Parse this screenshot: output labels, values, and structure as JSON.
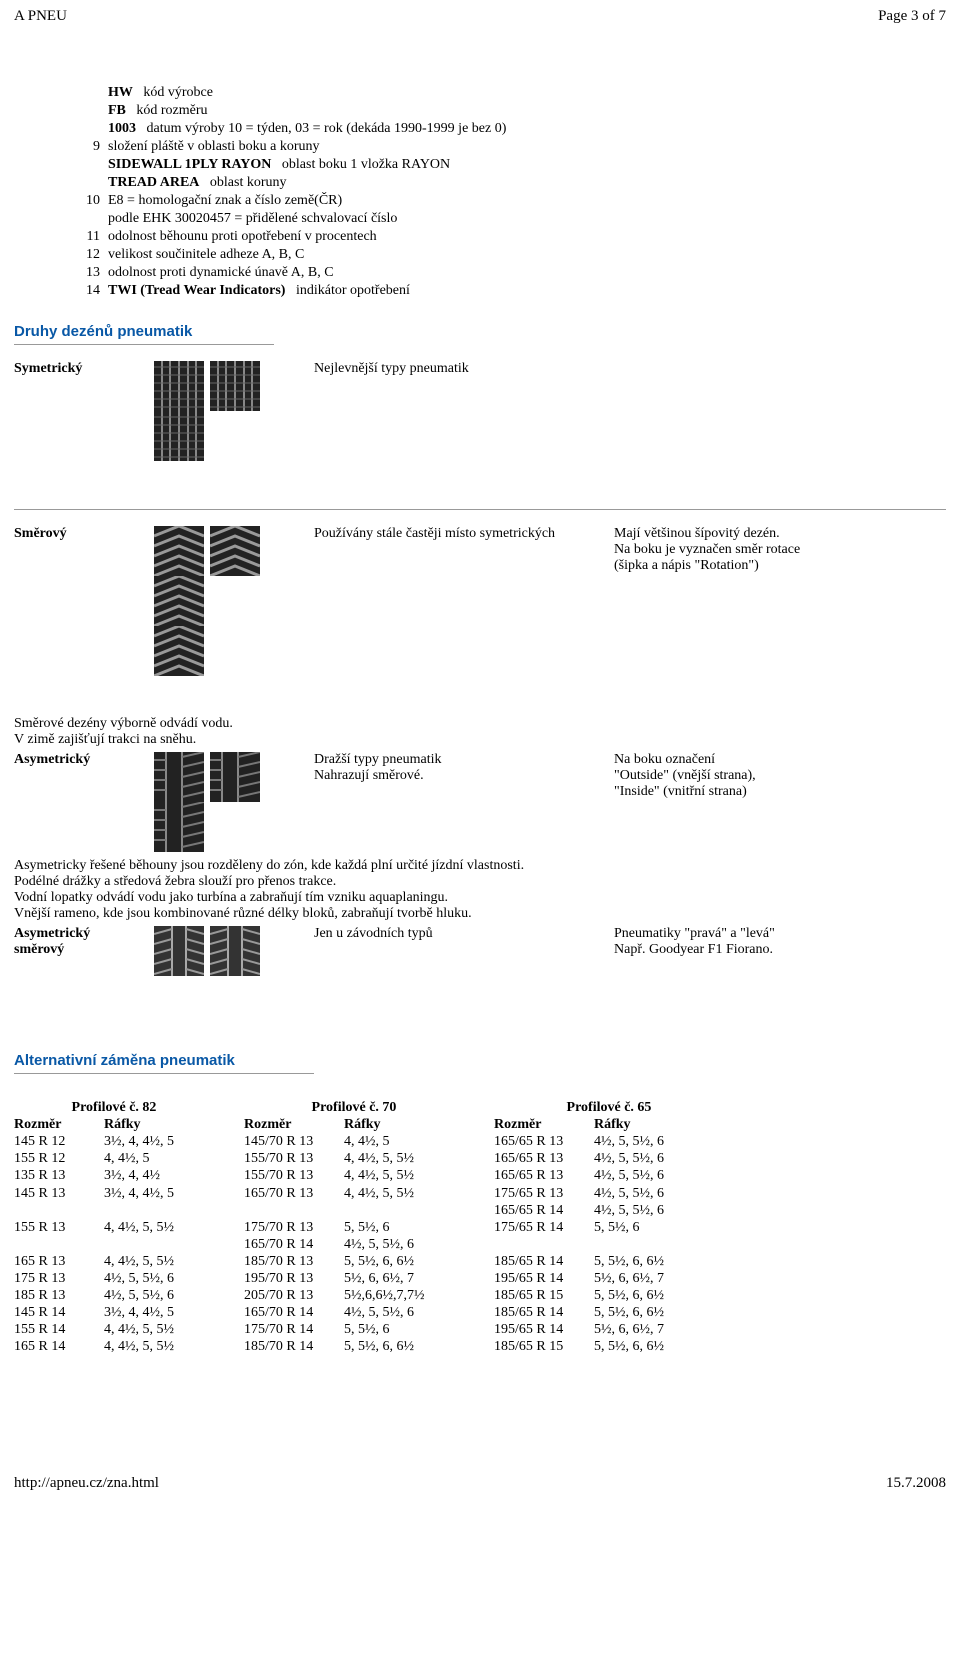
{
  "header": {
    "title": "A PNEU",
    "page": "Page 3 of 7"
  },
  "defs": [
    {
      "idx": "",
      "lbl": "HW",
      "val": "kód výrobce"
    },
    {
      "idx": "",
      "lbl": "FB",
      "val": "kód rozměru"
    },
    {
      "idx": "",
      "lbl": "1003",
      "val": "datum výroby 10 = týden, 03 = rok (dekáda 1990-1999 je bez 0)"
    },
    {
      "idx": "9",
      "lbl": "",
      "val": "složení pláště v oblasti boku a koruny"
    },
    {
      "idx": "",
      "lbl": "SIDEWALL 1PLY RAYON",
      "val": "oblast boku 1 vložka RAYON"
    },
    {
      "idx": "",
      "lbl": "TREAD AREA",
      "val": "oblast koruny"
    },
    {
      "idx": "10",
      "lbl": "",
      "val": "E8 = homologační znak a číslo země(ČR)"
    },
    {
      "idx": "",
      "lbl": "",
      "val": "podle EHK 30020457 = přidělené schvalovací číslo"
    },
    {
      "idx": "11",
      "lbl": "",
      "val": "odolnost běhounu proti opotřebení v procentech"
    },
    {
      "idx": "12",
      "lbl": "",
      "val": "velikost součinitele adheze A, B, C"
    },
    {
      "idx": "13",
      "lbl": "",
      "val": "odolnost proti dynamické únavě A, B, C"
    },
    {
      "idx": "14",
      "lbl": "TWI (Tread Wear Indicators)",
      "val": "indikátor opotřebení"
    }
  ],
  "section_patterns_title": "Druhy dezénů pneumatik",
  "patterns": {
    "sym": {
      "name": "Symetrický",
      "desc": "Nejlevnější typy pneumatik",
      "note": ""
    },
    "dir": {
      "name": "Směrový",
      "desc": "Používány stále častěji místo symetrických",
      "note": "Mají většinou šípovitý dezén.\nNa boku je vyznačen směr rotace\n(šipka a nápis \"Rotation\")"
    },
    "dir_extra": "Směrové dezény výborně odvádí vodu.\nV zimě zajišťují trakci na sněhu.",
    "asym": {
      "name": "Asymetrický",
      "desc": "Dražší typy pneumatik\nNahrazují směrové.",
      "note": "Na boku označení\n\"Outside\" (vnější strana),\n\"Inside\" (vnitřní strana)"
    },
    "asym_extra": "Asymetricky řešené běhouny jsou rozděleny do zón, kde každá plní určité jízdní vlastnosti.\nPodélné drážky a středová žebra slouží pro přenos trakce.\nVodní lopatky odvádí vodu jako turbína a zabraňují tím vzniku aquaplaningu.\nVnější rameno, kde jsou kombinované různé délky bloků, zabraňují tvorbě hluku.",
    "asymdir": {
      "name": "Asymetrický\nsměrový",
      "desc": "Jen u závodních typů",
      "note": "Pneumatiky \"pravá\" a \"levá\"\nNapř. Goodyear F1 Fiorano."
    }
  },
  "section_alt_title": "Alternativní záměna pneumatik",
  "alt_headers": {
    "p82": "Profilové č. 82",
    "p70": "Profilové č. 70",
    "p65": "Profilové č. 65",
    "col1": "Rozměr",
    "col2": "Ráfky"
  },
  "alt_rows": [
    [
      "145 R 12",
      "3½, 4, 4½, 5",
      "145/70 R 13",
      "4, 4½, 5",
      "165/65 R 13",
      "4½, 5, 5½, 6"
    ],
    [
      "155 R 12",
      "4, 4½, 5",
      "155/70 R 13",
      "4, 4½, 5, 5½",
      "165/65 R 13",
      "4½, 5, 5½, 6"
    ],
    [
      "135 R 13",
      "3½, 4, 4½",
      "155/70 R 13",
      "4, 4½, 5, 5½",
      "165/65 R 13",
      "4½, 5, 5½, 6"
    ],
    [
      "",
      "",
      "",
      "",
      "",
      ""
    ],
    [
      "145 R 13",
      "3½, 4, 4½, 5",
      "165/70 R 13",
      "4, 4½, 5, 5½",
      "175/65 R 13",
      "4½, 5, 5½, 6"
    ],
    [
      "",
      "",
      "",
      "",
      "165/65 R 14",
      "4½, 5, 5½, 6"
    ],
    [
      "155 R 13",
      "4, 4½, 5, 5½",
      "175/70 R 13",
      "5, 5½, 6",
      "175/65 R 14",
      "5, 5½, 6"
    ],
    [
      "",
      "",
      "165/70 R 14",
      "4½, 5, 5½, 6",
      "",
      ""
    ],
    [
      "165 R 13",
      "4, 4½, 5, 5½",
      "185/70 R 13",
      "5, 5½, 6, 6½",
      "185/65 R 14",
      "5, 5½, 6, 6½"
    ],
    [
      "175 R 13",
      "4½, 5, 5½, 6",
      "195/70 R 13",
      "5½, 6, 6½, 7",
      "195/65 R 14",
      "5½, 6, 6½, 7"
    ],
    [
      "185 R 13",
      "4½, 5, 5½, 6",
      "205/70 R 13",
      "5½,6,6½,7,7½",
      "185/65 R 15",
      "5, 5½, 6, 6½"
    ],
    [
      "145 R 14",
      "3½, 4, 4½, 5",
      "165/70 R 14",
      "4½, 5, 5½, 6",
      "185/65 R 14",
      "5, 5½, 6, 6½"
    ],
    [
      "155 R 14",
      "4, 4½, 5, 5½",
      "175/70 R 14",
      "5, 5½, 6",
      "195/65 R 14",
      "5½, 6, 6½, 7"
    ],
    [
      "165 R 14",
      "4, 4½, 5, 5½",
      "185/70 R 14",
      "5, 5½, 6, 6½",
      "185/65 R 15",
      "5, 5½, 6, 6½"
    ]
  ],
  "footer": {
    "url": "http://apneu.cz/zna.html",
    "date": "15.7.2008"
  },
  "tire_svgs": {
    "sym": "data:image/svg+xml;utf8,<svg xmlns='http://www.w3.org/2000/svg' width='50' height='50'><rect width='50' height='50' fill='%23222'/><g stroke='%23888' stroke-width='2'><line x1='8' y1='0' x2='8' y2='50'/><line x1='16' y1='0' x2='16' y2='50'/><line x1='25' y1='0' x2='25' y2='50'/><line x1='34' y1='0' x2='34' y2='50'/><line x1='42' y1='0' x2='42' y2='50'/></g><g stroke='%23666' stroke-width='1'><line x1='0' y1='6' x2='50' y2='6'/><line x1='0' y1='14' x2='50' y2='14'/><line x1='0' y1='22' x2='50' y2='22'/><line x1='0' y1='30' x2='50' y2='30'/><line x1='0' y1='38' x2='50' y2='38'/><line x1='0' y1='46' x2='50' y2='46'/></g></svg>",
    "dir": "data:image/svg+xml;utf8,<svg xmlns='http://www.w3.org/2000/svg' width='50' height='50'><rect width='50' height='50' fill='%23222'/><g stroke='%23999' stroke-width='3' fill='none'><path d='M0 10 L25 0 L50 10'/><path d='M0 20 L25 10 L50 20'/><path d='M0 30 L25 20 L50 30'/><path d='M0 40 L25 30 L50 40'/><path d='M0 50 L25 40 L50 50'/></g></svg>",
    "asym": "data:image/svg+xml;utf8,<svg xmlns='http://www.w3.org/2000/svg' width='50' height='50'><rect width='50' height='50' fill='%23222'/><g stroke='%23888' stroke-width='2'><line x1='12' y1='0' x2='12' y2='50'/><line x1='28' y1='0' x2='28' y2='50'/></g><g stroke='%23777' stroke-width='2'><line x1='28' y1='5' x2='50' y2='0'/><line x1='28' y1='15' x2='50' y2='10'/><line x1='28' y1='25' x2='50' y2='20'/><line x1='28' y1='35' x2='50' y2='30'/><line x1='28' y1='45' x2='50' y2='40'/><line x1='0' y1='8' x2='12' y2='8'/><line x1='0' y1='18' x2='12' y2='18'/><line x1='0' y1='28' x2='12' y2='28'/><line x1='0' y1='38' x2='12' y2='38'/></g></svg>",
    "asymdir": "data:image/svg+xml;utf8,<svg xmlns='http://www.w3.org/2000/svg' width='50' height='50'><rect width='50' height='50' fill='%23333'/><g stroke='%23aaa' stroke-width='2'><line x1='18' y1='0' x2='18' y2='50'/><line x1='32' y1='0' x2='32' y2='50'/></g><g stroke='%23999' stroke-width='2' fill='none'><path d='M0 8 L18 3'/><path d='M0 18 L18 13'/><path d='M0 28 L18 23'/><path d='M0 38 L18 33'/><path d='M0 48 L18 43'/><path d='M32 3 L50 8'/><path d='M32 13 L50 18'/><path d='M32 23 L50 28'/><path d='M32 33 L50 38'/><path d='M32 43 L50 48'/></g></svg>"
  }
}
